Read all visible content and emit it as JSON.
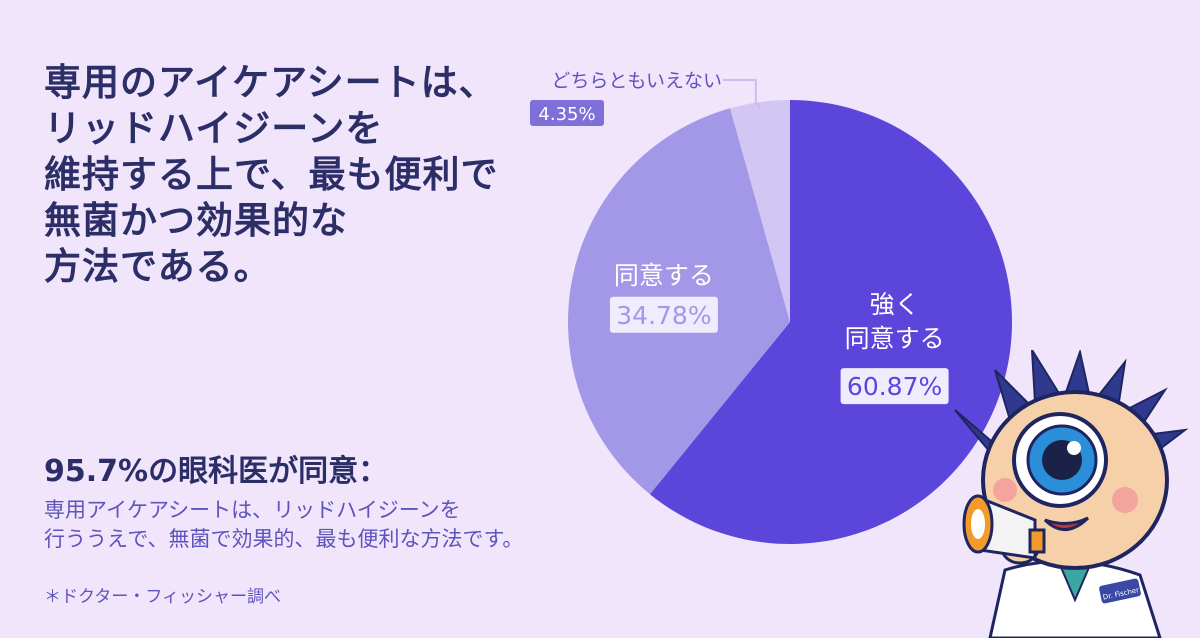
{
  "headline": "専用のアイケアシートは、\nリッドハイジーンを\n維持する上で、最も便利で\n無菌かつ効果的な\n方法である。",
  "summary": {
    "title": "95.7%の眼科医が同意：",
    "text": "専用アイケアシートは、リッドハイジーンを\n行ううえで、無菌で効果的、最も便利な方法です。"
  },
  "footnote": "＊ドクター・フィッシャー調べ",
  "chart_data": {
    "type": "pie",
    "slices": [
      {
        "label_lines": [
          "強く",
          "同意する"
        ],
        "value": 60.87,
        "value_label": "60.87%",
        "color": "#5b45db"
      },
      {
        "label_lines": [
          "同意する"
        ],
        "value": 34.78,
        "value_label": "34.78%",
        "color": "#a397e8"
      },
      {
        "label_lines": [
          "どちらともいえない"
        ],
        "value": 4.35,
        "value_label": "4.35%",
        "color": "#d2c6f5"
      }
    ]
  },
  "colors": {
    "background": "#f1e5fb",
    "headline": "#2c2e68",
    "accent_text": "#5d54bd"
  },
  "mascot": {
    "coat_badge": "Dr. Fischer"
  }
}
